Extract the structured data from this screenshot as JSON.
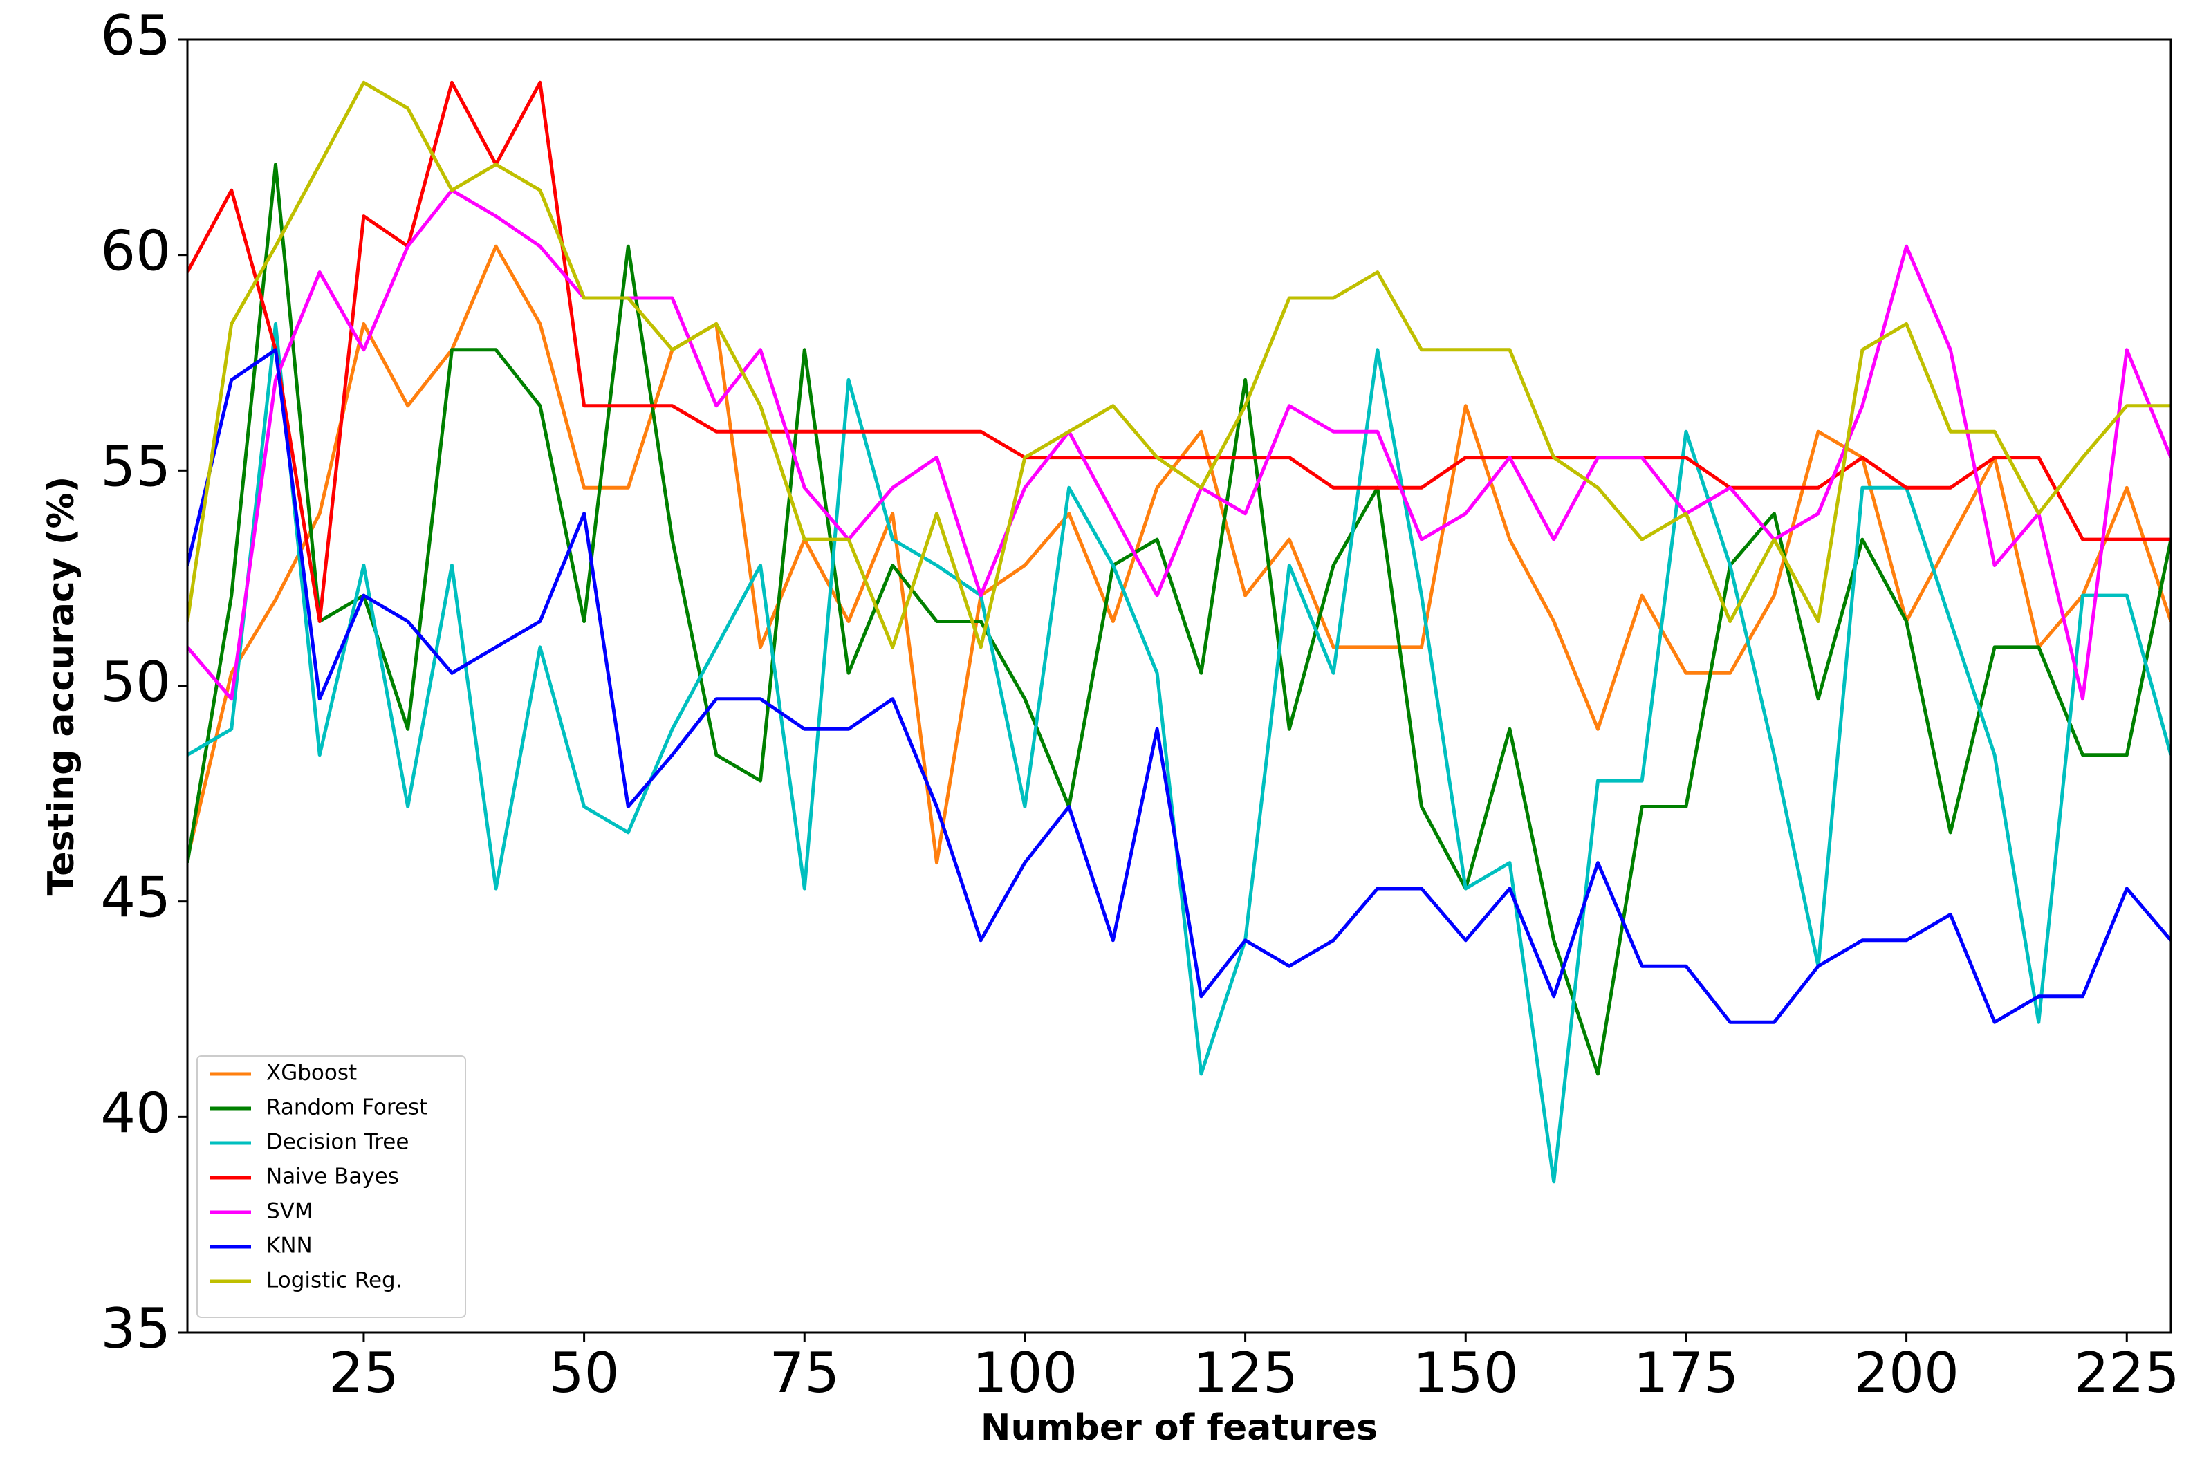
{
  "chart_data": {
    "type": "line",
    "xlabel": "Number of features",
    "ylabel": "Testing accuracy (%)",
    "xlim": [
      5,
      230
    ],
    "xticks": [
      25,
      50,
      75,
      100,
      125,
      150,
      175,
      200,
      225
    ],
    "ylim": [
      35,
      65
    ],
    "yticks": [
      35,
      40,
      45,
      50,
      55,
      60,
      65
    ],
    "legend": "lower left",
    "x": [
      5,
      10,
      15,
      20,
      25,
      30,
      35,
      40,
      45,
      50,
      55,
      60,
      65,
      70,
      75,
      80,
      85,
      90,
      95,
      100,
      105,
      110,
      115,
      120,
      125,
      130,
      135,
      140,
      145,
      150,
      155,
      160,
      165,
      170,
      175,
      180,
      185,
      190,
      195,
      200,
      205,
      210,
      215,
      220,
      225,
      230
    ],
    "series": [
      {
        "name": "XGboost",
        "color": "#ff7f0e",
        "values": [
          46,
          50.3,
          52,
          54,
          58.4,
          56.5,
          57.8,
          60.2,
          58.4,
          54.6,
          54.6,
          57.8,
          58.4,
          50.9,
          53.4,
          51.5,
          54,
          45.9,
          52.1,
          52.8,
          54,
          51.5,
          54.6,
          55.9,
          52.1,
          53.4,
          50.9,
          50.9,
          50.9,
          56.5,
          53.4,
          51.5,
          49,
          52.1,
          50.3,
          50.3,
          52.1,
          55.9,
          55.3,
          51.5,
          53.4,
          55.3,
          50.9,
          52.1,
          54.6,
          51.5
        ]
      },
      {
        "name": "Random Forest",
        "color": "#008000",
        "values": [
          45.9,
          52.1,
          62.1,
          51.5,
          52.1,
          49,
          57.8,
          57.8,
          56.5,
          51.5,
          60.2,
          53.4,
          48.4,
          47.8,
          57.8,
          50.3,
          52.8,
          51.5,
          51.5,
          49.7,
          47.2,
          52.8,
          53.4,
          50.3,
          57.1,
          49,
          52.8,
          54.6,
          47.2,
          45.3,
          49,
          44.1,
          41,
          47.2,
          47.2,
          52.8,
          54,
          49.7,
          53.4,
          51.5,
          46.6,
          50.9,
          50.9,
          48.4,
          48.4,
          53.4
        ]
      },
      {
        "name": "Decision Tree",
        "color": "#00bfbf",
        "values": [
          48.4,
          49,
          58.4,
          48.4,
          52.8,
          47.2,
          52.8,
          45.3,
          50.9,
          47.2,
          46.6,
          49,
          50.9,
          52.8,
          45.3,
          57.1,
          53.4,
          52.8,
          52.1,
          47.2,
          54.6,
          52.8,
          50.3,
          41,
          44.1,
          52.8,
          50.3,
          57.8,
          52.1,
          45.3,
          45.9,
          38.5,
          47.8,
          47.8,
          55.9,
          52.8,
          48.4,
          43.5,
          54.6,
          54.6,
          51.5,
          48.4,
          42.2,
          52.1,
          52.1,
          48.4
        ]
      },
      {
        "name": "Naive Bayes",
        "color": "#ff0000",
        "values": [
          59.6,
          61.5,
          57.8,
          51.5,
          60.9,
          60.2,
          64,
          62.1,
          64,
          56.5,
          56.5,
          56.5,
          55.9,
          55.9,
          55.9,
          55.9,
          55.9,
          55.9,
          55.9,
          55.3,
          55.3,
          55.3,
          55.3,
          55.3,
          55.3,
          55.3,
          54.6,
          54.6,
          54.6,
          55.3,
          55.3,
          55.3,
          55.3,
          55.3,
          55.3,
          54.6,
          54.6,
          54.6,
          55.3,
          54.6,
          54.6,
          55.3,
          55.3,
          53.4,
          53.4,
          53.4
        ]
      },
      {
        "name": "SVM",
        "color": "#ff00ff",
        "values": [
          50.9,
          49.7,
          57.1,
          59.6,
          57.8,
          60.2,
          61.5,
          60.9,
          60.2,
          59,
          59,
          59,
          56.5,
          57.8,
          54.6,
          53.4,
          54.6,
          55.3,
          52.1,
          54.6,
          55.9,
          54,
          52.1,
          54.6,
          54,
          56.5,
          55.9,
          55.9,
          53.4,
          54,
          55.3,
          53.4,
          55.3,
          55.3,
          54,
          54.6,
          53.4,
          54,
          56.5,
          60.2,
          57.8,
          52.8,
          54,
          49.7,
          57.8,
          55.3
        ]
      },
      {
        "name": "KNN",
        "color": "#0000ff",
        "values": [
          52.8,
          57.1,
          57.8,
          49.7,
          52.1,
          51.5,
          50.3,
          50.9,
          51.5,
          54,
          47.2,
          48.4,
          49.7,
          49.7,
          49,
          49,
          49.7,
          47.2,
          44.1,
          45.9,
          47.2,
          44.1,
          49,
          42.8,
          44.1,
          43.5,
          44.1,
          45.3,
          45.3,
          44.1,
          45.3,
          42.8,
          45.9,
          43.5,
          43.5,
          42.2,
          42.2,
          43.5,
          44.1,
          44.1,
          44.7,
          42.2,
          42.8,
          42.8,
          45.3,
          44.1
        ]
      },
      {
        "name": "Logistic Reg.",
        "color": "#bfbf00",
        "values": [
          51.5,
          58.4,
          60.2,
          62.1,
          64,
          63.4,
          61.5,
          62.1,
          61.5,
          59,
          59,
          57.8,
          58.4,
          56.5,
          53.4,
          53.4,
          50.9,
          54,
          50.9,
          55.3,
          55.9,
          56.5,
          55.3,
          54.6,
          56.5,
          59,
          59,
          59.6,
          57.8,
          57.8,
          57.8,
          55.3,
          54.6,
          53.4,
          54,
          51.5,
          53.4,
          51.5,
          57.8,
          58.4,
          55.9,
          55.9,
          54,
          55.3,
          56.5,
          56.5
        ]
      }
    ]
  }
}
